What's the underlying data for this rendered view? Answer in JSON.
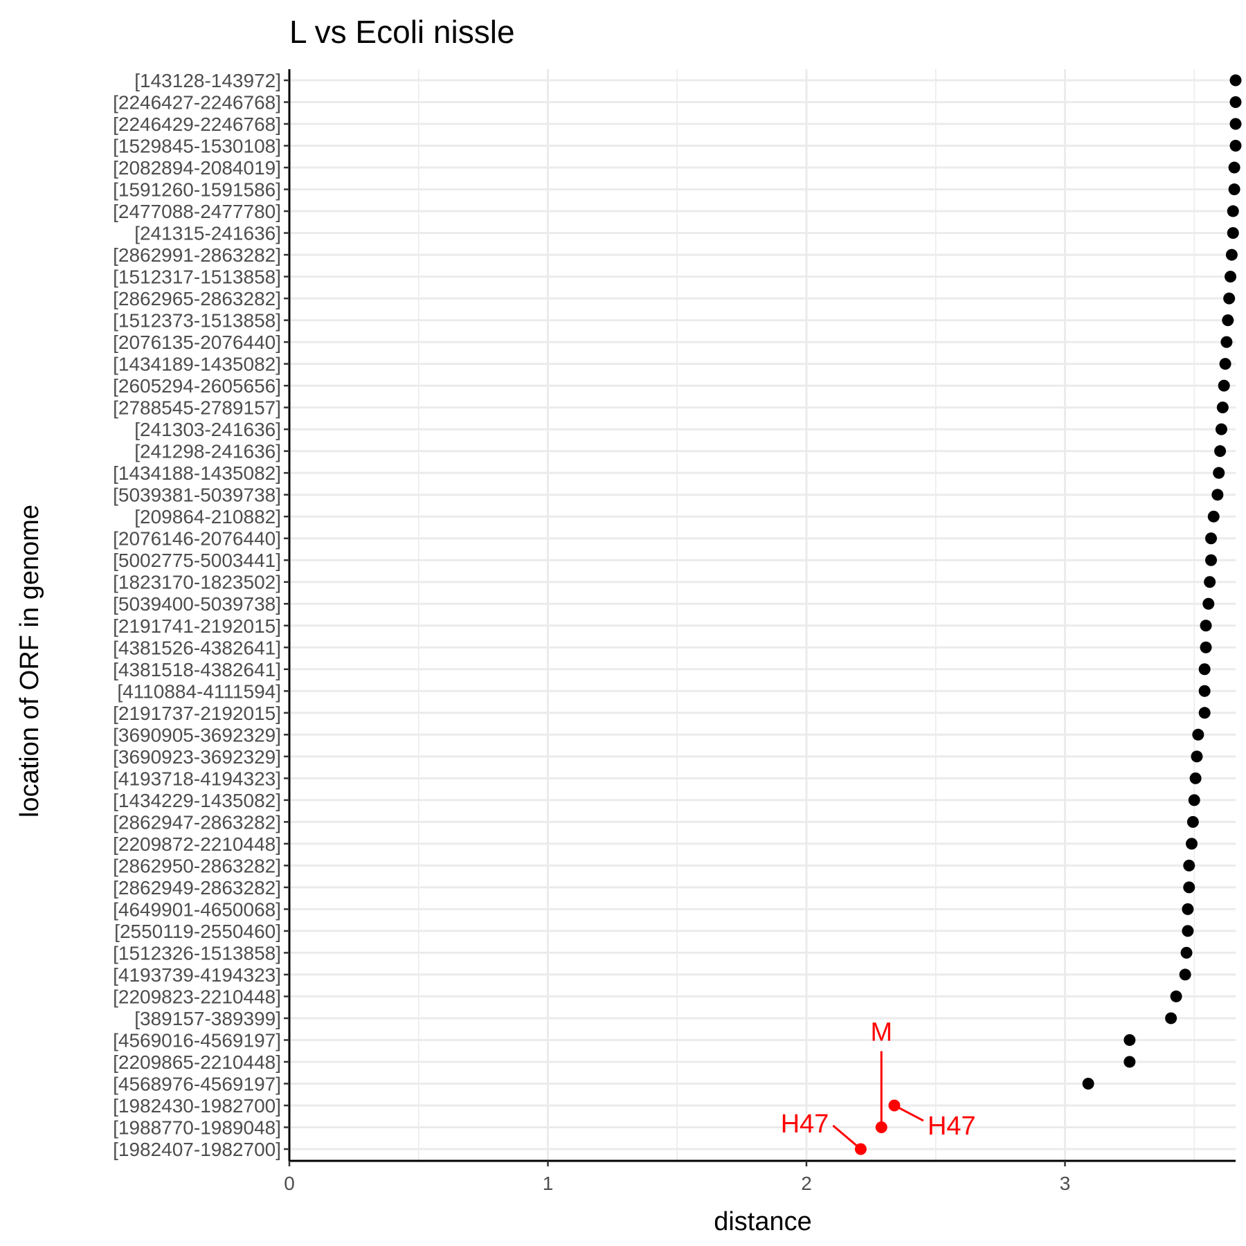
{
  "chart_data": {
    "type": "scatter",
    "title": "L vs Ecoli nissle",
    "xlabel": "distance",
    "ylabel": "location of ORF in genome",
    "xlim": [
      0,
      3.66
    ],
    "x_ticks": [
      0,
      1,
      2,
      3
    ],
    "grid": true,
    "colors": {
      "point": "#000000",
      "highlight": "#ff0000",
      "grid": "#ebebeb"
    },
    "categories": [
      "[143128-143972]",
      "[2246427-2246768]",
      "[2246429-2246768]",
      "[1529845-1530108]",
      "[2082894-2084019]",
      "[1591260-1591586]",
      "[2477088-2477780]",
      "[241315-241636]",
      "[2862991-2863282]",
      "[1512317-1513858]",
      "[2862965-2863282]",
      "[1512373-1513858]",
      "[2076135-2076440]",
      "[1434189-1435082]",
      "[2605294-2605656]",
      "[2788545-2789157]",
      "[241303-241636]",
      "[241298-241636]",
      "[1434188-1435082]",
      "[5039381-5039738]",
      "[209864-210882]",
      "[2076146-2076440]",
      "[5002775-5003441]",
      "[1823170-1823502]",
      "[5039400-5039738]",
      "[2191741-2192015]",
      "[4381526-4382641]",
      "[4381518-4382641]",
      "[4110884-4111594]",
      "[2191737-2192015]",
      "[3690905-3692329]",
      "[3690923-3692329]",
      "[4193718-4194323]",
      "[1434229-1435082]",
      "[2862947-2863282]",
      "[2209872-2210448]",
      "[2862950-2863282]",
      "[2862949-2863282]",
      "[4649901-4650068]",
      "[2550119-2550460]",
      "[1512326-1513858]",
      "[4193739-4194323]",
      "[2209823-2210448]",
      "[389157-389399]",
      "[4569016-4569197]",
      "[2209865-2210448]",
      "[4568976-4569197]",
      "[1982430-1982700]",
      "[1988770-1989048]",
      "[1982407-1982700]"
    ],
    "values": [
      3.66,
      3.66,
      3.66,
      3.66,
      3.655,
      3.655,
      3.65,
      3.65,
      3.645,
      3.64,
      3.635,
      3.63,
      3.625,
      3.62,
      3.615,
      3.61,
      3.605,
      3.6,
      3.595,
      3.59,
      3.575,
      3.565,
      3.565,
      3.56,
      3.555,
      3.545,
      3.545,
      3.54,
      3.54,
      3.54,
      3.515,
      3.51,
      3.505,
      3.5,
      3.495,
      3.49,
      3.48,
      3.48,
      3.475,
      3.475,
      3.47,
      3.465,
      3.43,
      3.41,
      3.25,
      3.25,
      3.09,
      2.34,
      2.29,
      2.21
    ],
    "highlight_indices": [
      47,
      48,
      49
    ],
    "annotations": [
      {
        "text": "M",
        "index": 48,
        "placement": "above"
      },
      {
        "text": "H47",
        "index": 47,
        "placement": "right"
      },
      {
        "text": "H47",
        "index": 49,
        "placement": "left"
      }
    ]
  }
}
